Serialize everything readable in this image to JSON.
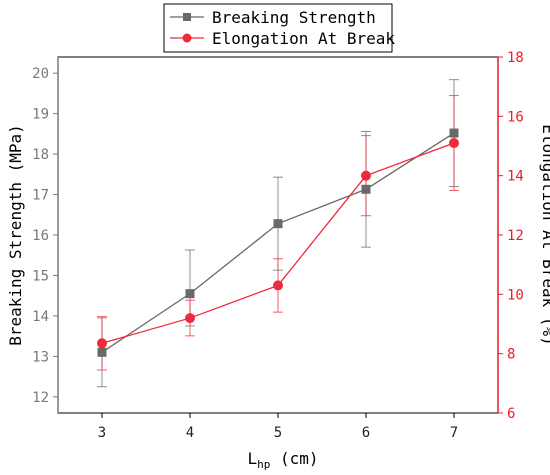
{
  "colors": {
    "strength": "#696969",
    "elongation": "#ee2b3b",
    "right_axis": "#ee1c25",
    "left_axis": "#7a7a7a",
    "frame": "#000000"
  },
  "legend": {
    "placement": "top-center",
    "entries": [
      "Breaking Strength",
      "Elongation At Break"
    ]
  },
  "chart_data": {
    "type": "line",
    "x": [
      3,
      4,
      5,
      6,
      7
    ],
    "xlabel_main": "L",
    "xlabel_sub": "hp",
    "xlabel_unit": " (cm)",
    "xlim": [
      2.5,
      7.5
    ],
    "xticks": [
      3,
      4,
      5,
      6,
      7
    ],
    "left_axis": {
      "label": "Breaking Strength (MPa)",
      "ylim": [
        11.6,
        20.4
      ],
      "ticks": [
        12,
        13,
        14,
        15,
        16,
        17,
        18,
        19,
        20
      ]
    },
    "right_axis": {
      "label": "Elongation At Break (%)",
      "ylim": [
        6,
        18
      ],
      "ticks": [
        6,
        8,
        10,
        12,
        14,
        16,
        18
      ]
    },
    "series": [
      {
        "name": "Breaking Strength",
        "axis": "left",
        "marker": "square",
        "values": [
          13.1,
          14.55,
          16.28,
          17.13,
          18.52
        ],
        "err_low": [
          0.85,
          0.8,
          1.15,
          1.43,
          1.32
        ],
        "err_high": [
          0.85,
          1.08,
          1.15,
          1.43,
          1.32
        ]
      },
      {
        "name": "Elongation At Break",
        "axis": "right",
        "marker": "circle",
        "values": [
          8.35,
          9.2,
          10.3,
          14.0,
          15.1
        ],
        "err_low": [
          0.9,
          0.6,
          0.9,
          1.35,
          1.6
        ],
        "err_high": [
          0.9,
          0.6,
          0.9,
          1.35,
          1.6
        ]
      }
    ],
    "grid": false
  }
}
